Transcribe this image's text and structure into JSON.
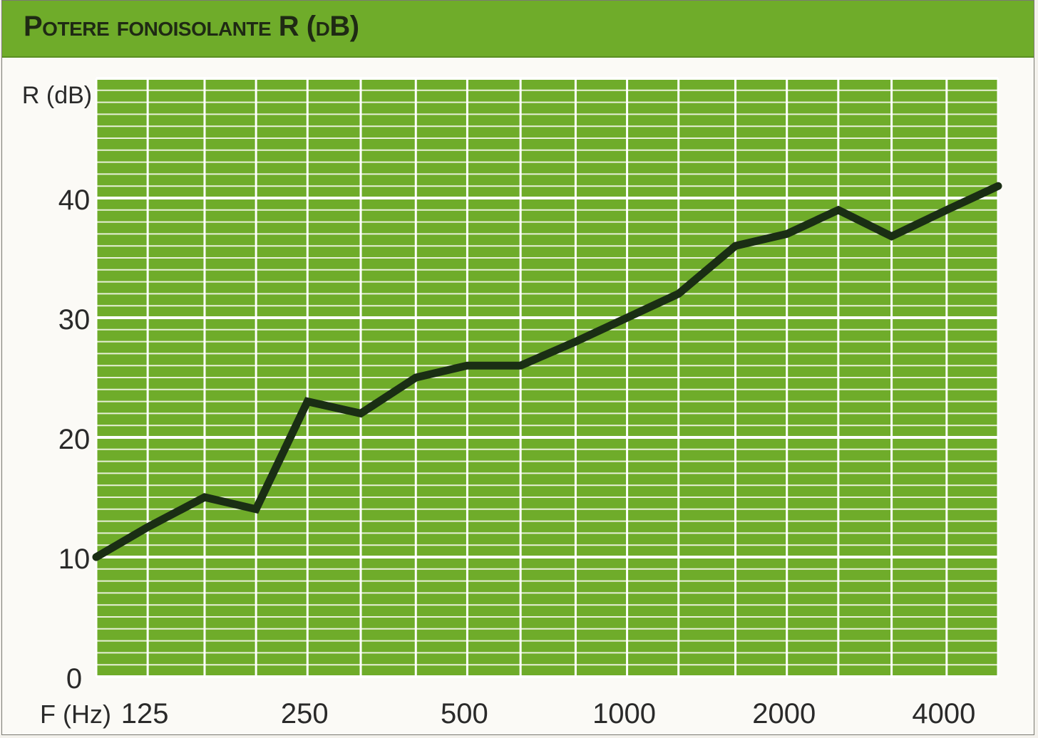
{
  "title": "Potere fonoisolante R (dB)",
  "colors": {
    "plot_background": "#6fac2a",
    "grid_minor": "#e8f0d8",
    "grid_major": "#ffffff",
    "line": "#1a2e14",
    "header": "#6fac2a"
  },
  "chart_data": {
    "type": "line",
    "title": "Potere fonoisolante R (dB)",
    "xlabel": "F (Hz)",
    "ylabel": "R (dB)",
    "x_scale": "log (third-octave bands)",
    "x_tick_labels": [
      "125",
      "250",
      "500",
      "1000",
      "2000",
      "4000"
    ],
    "x_tick_values": [
      125,
      250,
      500,
      1000,
      2000,
      4000
    ],
    "y_tick_labels": [
      "0",
      "10",
      "20",
      "30",
      "40"
    ],
    "y_tick_values": [
      0,
      10,
      20,
      30,
      40
    ],
    "ylim": [
      0,
      50
    ],
    "xlim": [
      100,
      5000
    ],
    "grid": true,
    "series": [
      {
        "x": [
          100,
          125,
          160,
          200,
          250,
          315,
          400,
          500,
          630,
          800,
          1000,
          1250,
          1600,
          2000,
          2500,
          3150,
          4000,
          5000
        ],
        "values": [
          10,
          12.5,
          15,
          14,
          23,
          22,
          25,
          26,
          26,
          28,
          30,
          32,
          36,
          37,
          39,
          36.8,
          39,
          41
        ]
      }
    ]
  }
}
